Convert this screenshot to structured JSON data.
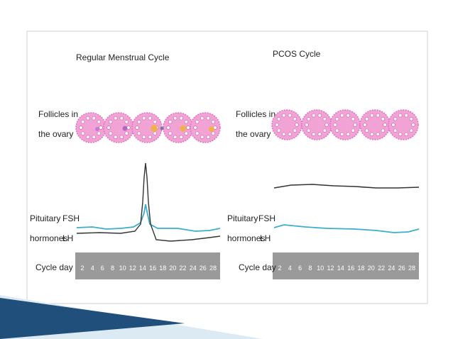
{
  "colors": {
    "frame": "#cfcfcf",
    "follicle_fill": "#f2a3d6",
    "follicle_stroke": "#e070bf",
    "oocyte_fill": "#ffffff",
    "dominant_fill": "#f2b04a",
    "fsh_line": "#3aaecb",
    "lh_line": "#333333",
    "cycle_bar": "#9a9a9a",
    "day_text": "#ffffff",
    "wedge_dark": "#1f4f7a",
    "wedge_light": "#dceaf4"
  },
  "panels": {
    "regular": {
      "title": "Regular Menstrual Cycle",
      "follicle_label_1": "Follicles in",
      "follicle_label_2": "the ovary",
      "hormone_label_1": "Pituitary",
      "fsh_label": "FSH",
      "hormone_label_2": "hormones",
      "lh_label": "LH",
      "cycle_label": "Cycle day"
    },
    "pcos": {
      "title": "PCOS Cycle",
      "follicle_label_1": "Follicles in",
      "follicle_label_2": "the ovary",
      "hormone_label_1": "Pituitary",
      "fsh_label": "FSH",
      "hormone_label_2": "hormones",
      "lh_label": "LH",
      "cycle_label": "Cycle day"
    }
  },
  "cycle_days": [
    "2",
    "4",
    "6",
    "8",
    "10",
    "12",
    "14",
    "16",
    "18",
    "20",
    "22",
    "24",
    "26",
    "28"
  ]
}
